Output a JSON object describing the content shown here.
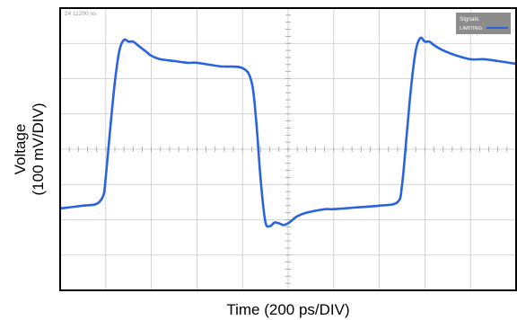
{
  "chart_data": {
    "type": "line",
    "title": "",
    "xlabel": "Time (200 ps/DIV)",
    "ylabel_line1": "Voltage",
    "ylabel_line2": "(100 mV/DIV)",
    "xlim": [
      0,
      10
    ],
    "ylim": [
      0,
      8
    ],
    "x_unit": "DIV",
    "y_unit": "DIV",
    "grid": true,
    "grid_divisions": {
      "x": 10,
      "y": 8
    },
    "timestamp": "24 11200 ns",
    "legend": {
      "title": "Signals",
      "position": "top-right",
      "entries": [
        "LIMITING"
      ]
    },
    "colors": {
      "trace": "#2a63e0",
      "grid": "#c8c8c8",
      "frame": "#000000",
      "legend_bg": "#8c8c8c"
    },
    "series": [
      {
        "name": "LIMITING",
        "x": [
          0,
          0.5,
          0.8,
          0.95,
          1.0,
          1.1,
          1.2,
          1.3,
          1.4,
          1.5,
          1.6,
          1.7,
          1.8,
          1.9,
          2.0,
          2.2,
          2.5,
          2.8,
          3.0,
          3.5,
          4.0,
          4.2,
          4.3,
          4.4,
          4.5,
          4.6,
          4.7,
          4.8,
          4.9,
          5.0,
          5.1,
          5.2,
          5.4,
          5.8,
          6.0,
          6.5,
          7.0,
          7.4,
          7.5,
          7.6,
          7.7,
          7.8,
          7.9,
          8.0,
          8.1,
          8.2,
          8.4,
          8.7,
          9.0,
          9.3,
          9.6,
          10.0
        ],
        "y": [
          2.32,
          2.4,
          2.45,
          2.7,
          3.2,
          4.6,
          5.9,
          6.8,
          7.1,
          7.05,
          7.05,
          6.95,
          6.85,
          6.75,
          6.65,
          6.55,
          6.5,
          6.45,
          6.45,
          6.35,
          6.3,
          5.9,
          4.8,
          3.1,
          1.95,
          1.82,
          1.92,
          1.9,
          1.85,
          1.9,
          2.0,
          2.1,
          2.2,
          2.3,
          2.3,
          2.35,
          2.4,
          2.5,
          3.0,
          4.4,
          5.8,
          6.8,
          7.15,
          7.05,
          7.05,
          6.95,
          6.8,
          6.65,
          6.55,
          6.55,
          6.5,
          6.42
        ]
      }
    ]
  }
}
